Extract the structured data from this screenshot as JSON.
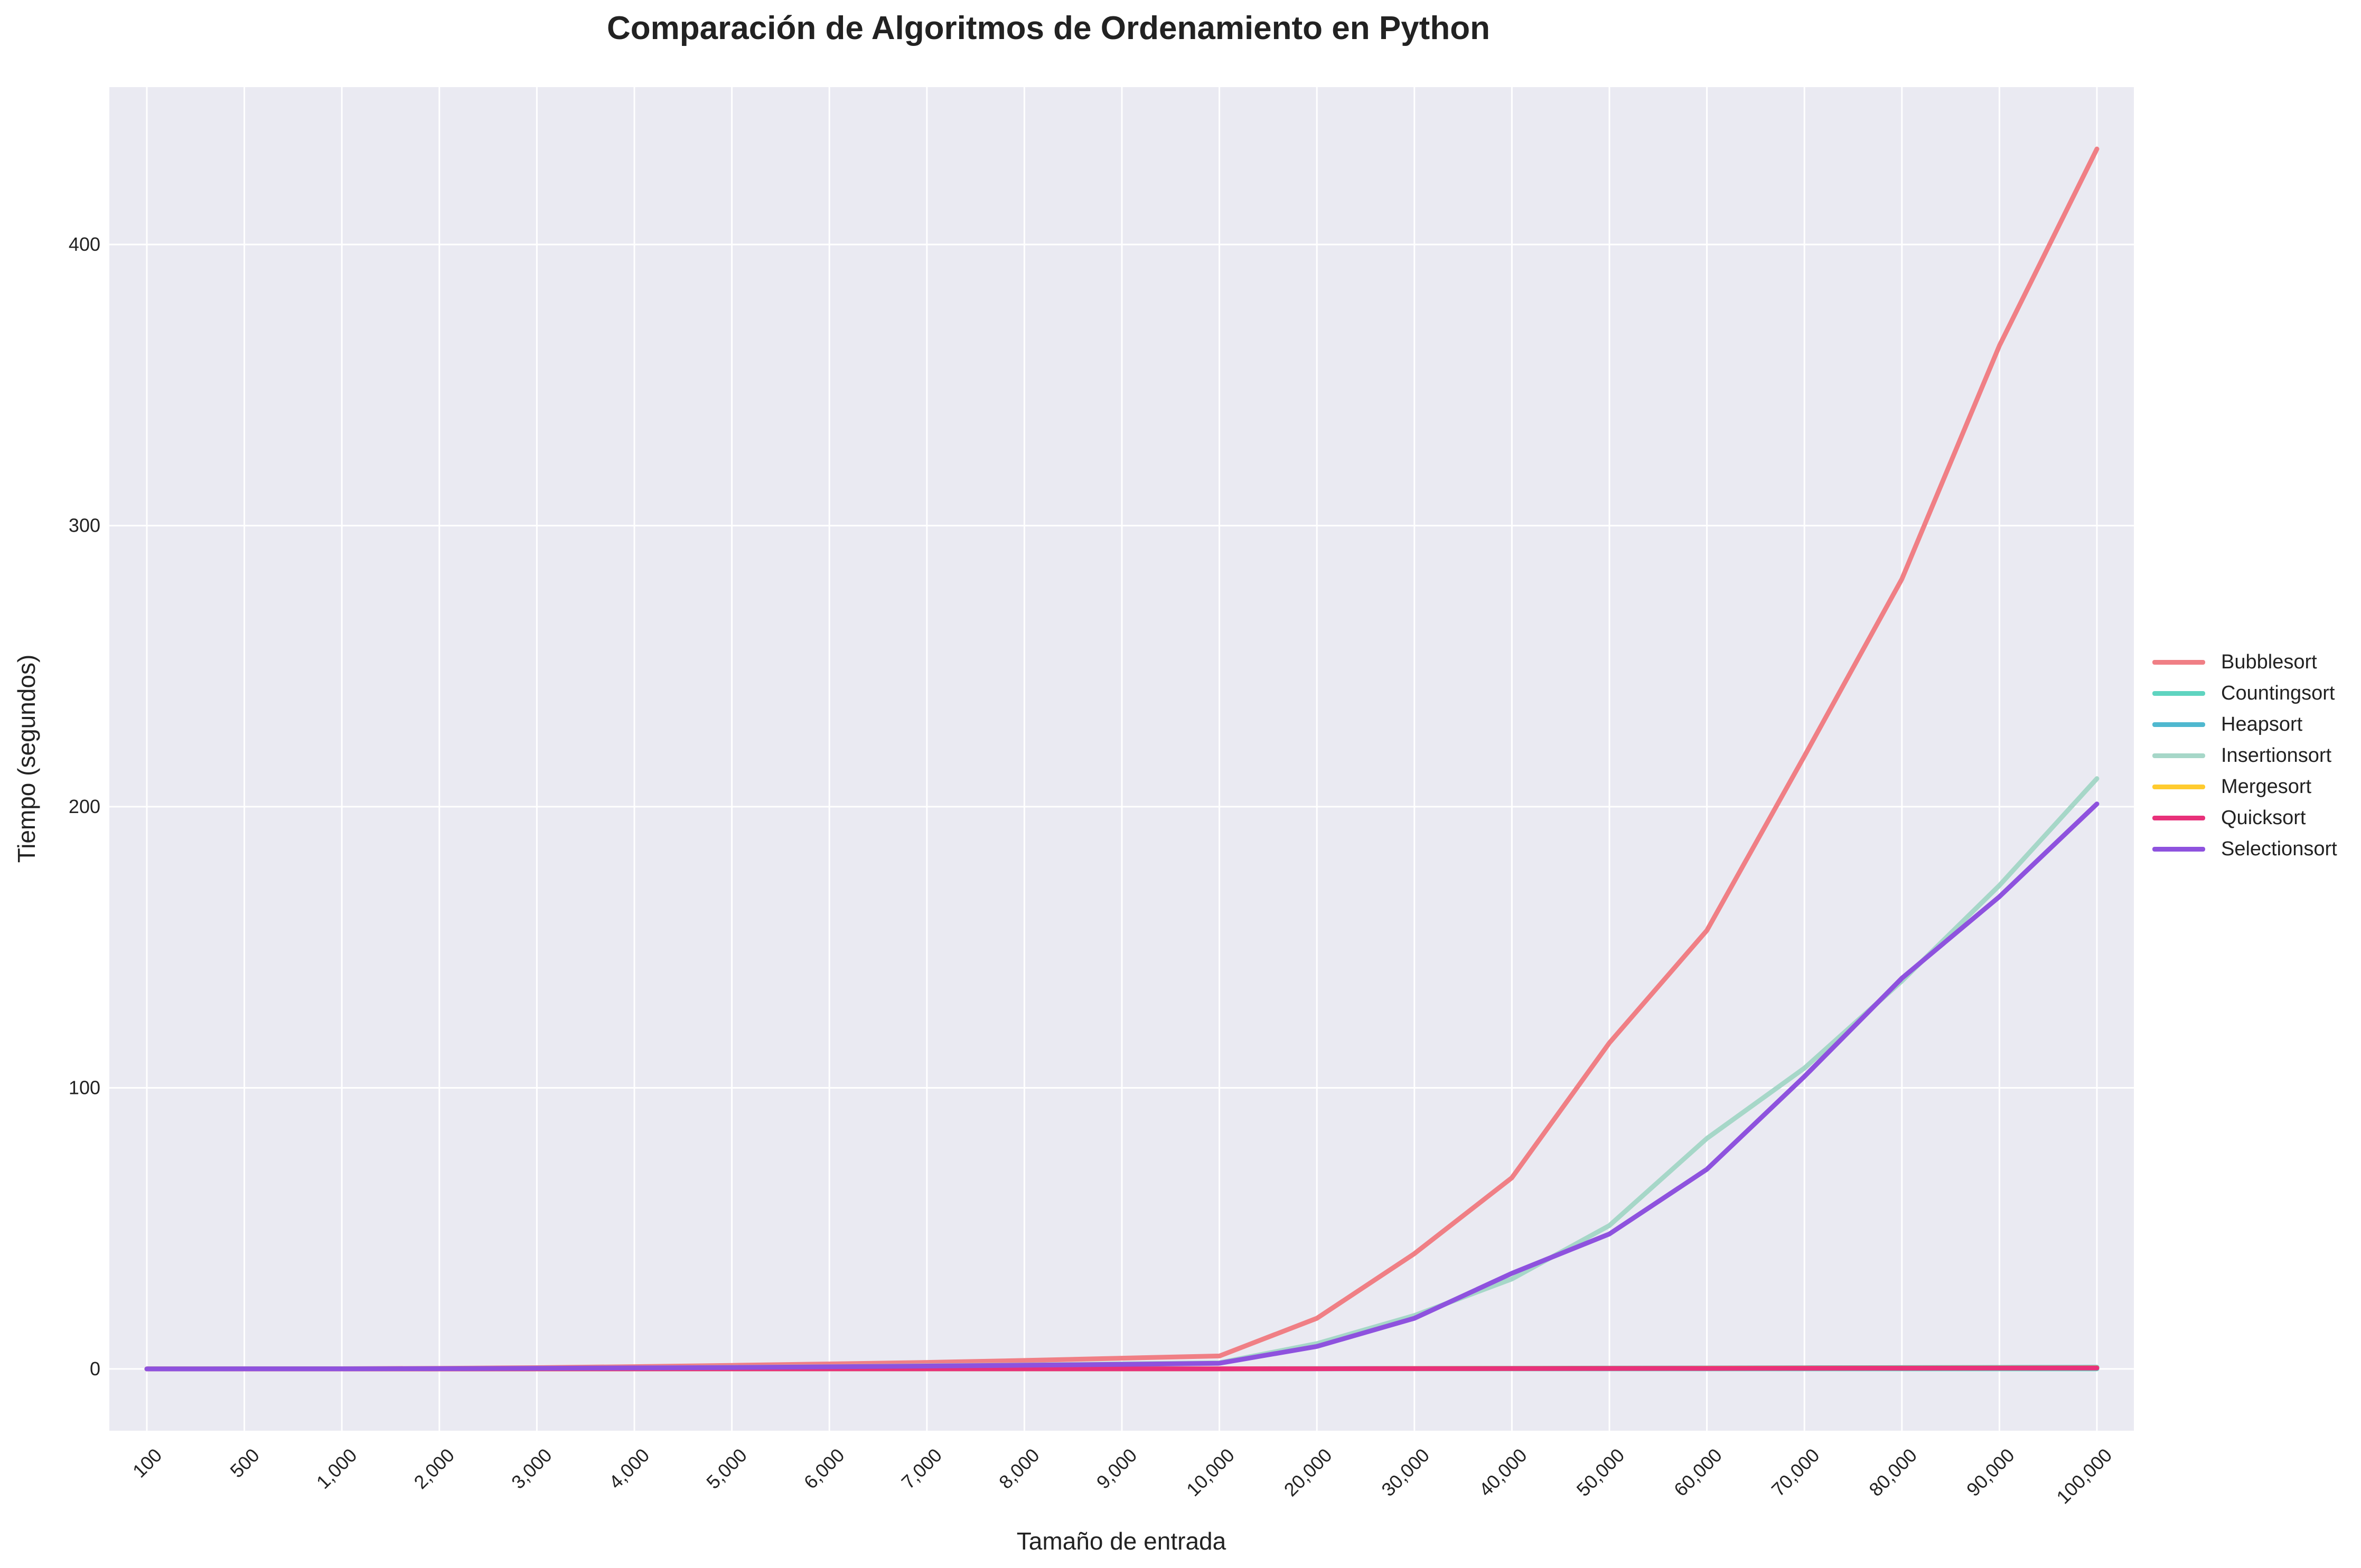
{
  "chart_data": {
    "type": "line",
    "title": "Comparación de Algoritmos de Ordenamiento en Python",
    "xlabel": "Tamaño de entrada",
    "ylabel": "Tiempo (segundos)",
    "categories": [
      "100",
      "500",
      "1,000",
      "2,000",
      "3,000",
      "4,000",
      "5,000",
      "6,000",
      "7,000",
      "8,000",
      "9,000",
      "10,000",
      "20,000",
      "30,000",
      "40,000",
      "50,000",
      "60,000",
      "70,000",
      "80,000",
      "90,000",
      "100,000"
    ],
    "ylim": [
      -22,
      456
    ],
    "yticks": [
      0,
      100,
      200,
      300,
      400
    ],
    "grid": true,
    "legend_position": "right",
    "series": [
      {
        "name": "Bubblesort",
        "color": "#f07f85",
        "values": [
          0.0,
          0.02,
          0.07,
          0.2,
          0.45,
          0.8,
          1.25,
          1.75,
          2.3,
          3.0,
          3.8,
          4.6,
          18,
          41,
          68,
          116,
          156,
          218,
          281,
          364,
          434
        ]
      },
      {
        "name": "Countingsort",
        "color": "#5fd4c0",
        "values": [
          0.0,
          0.0,
          0.0,
          0.0,
          0.0,
          0.0,
          0.0,
          0.0,
          0.0,
          0.0,
          0.0,
          0.0,
          0.01,
          0.01,
          0.02,
          0.02,
          0.02,
          0.03,
          0.03,
          0.04,
          0.04
        ]
      },
      {
        "name": "Heapsort",
        "color": "#4fb8cf",
        "values": [
          0.0,
          0.0,
          0.0,
          0.01,
          0.01,
          0.02,
          0.02,
          0.03,
          0.03,
          0.04,
          0.05,
          0.05,
          0.1,
          0.16,
          0.22,
          0.28,
          0.34,
          0.4,
          0.46,
          0.52,
          0.58
        ]
      },
      {
        "name": "Insertionsort",
        "color": "#a6d7c8",
        "values": [
          0.0,
          0.01,
          0.03,
          0.09,
          0.2,
          0.35,
          0.55,
          0.8,
          1.1,
          1.4,
          1.8,
          2.2,
          9,
          19,
          32,
          51,
          82,
          107,
          138,
          172,
          210
        ]
      },
      {
        "name": "Mergesort",
        "color": "#ffcb2f",
        "values": [
          0.0,
          0.0,
          0.0,
          0.01,
          0.01,
          0.01,
          0.02,
          0.02,
          0.02,
          0.03,
          0.03,
          0.03,
          0.07,
          0.11,
          0.15,
          0.19,
          0.23,
          0.27,
          0.31,
          0.35,
          0.39
        ]
      },
      {
        "name": "Quicksort",
        "color": "#e8317a",
        "values": [
          0.0,
          0.0,
          0.0,
          0.0,
          0.01,
          0.01,
          0.01,
          0.01,
          0.02,
          0.02,
          0.02,
          0.02,
          0.05,
          0.08,
          0.11,
          0.14,
          0.17,
          0.2,
          0.24,
          0.28,
          0.32
        ]
      },
      {
        "name": "Selectionsort",
        "color": "#8e52de",
        "values": [
          0.0,
          0.01,
          0.03,
          0.09,
          0.2,
          0.35,
          0.5,
          0.75,
          1.0,
          1.3,
          1.6,
          2.0,
          8,
          18,
          34,
          48,
          71,
          104,
          139,
          168,
          201
        ]
      }
    ]
  }
}
